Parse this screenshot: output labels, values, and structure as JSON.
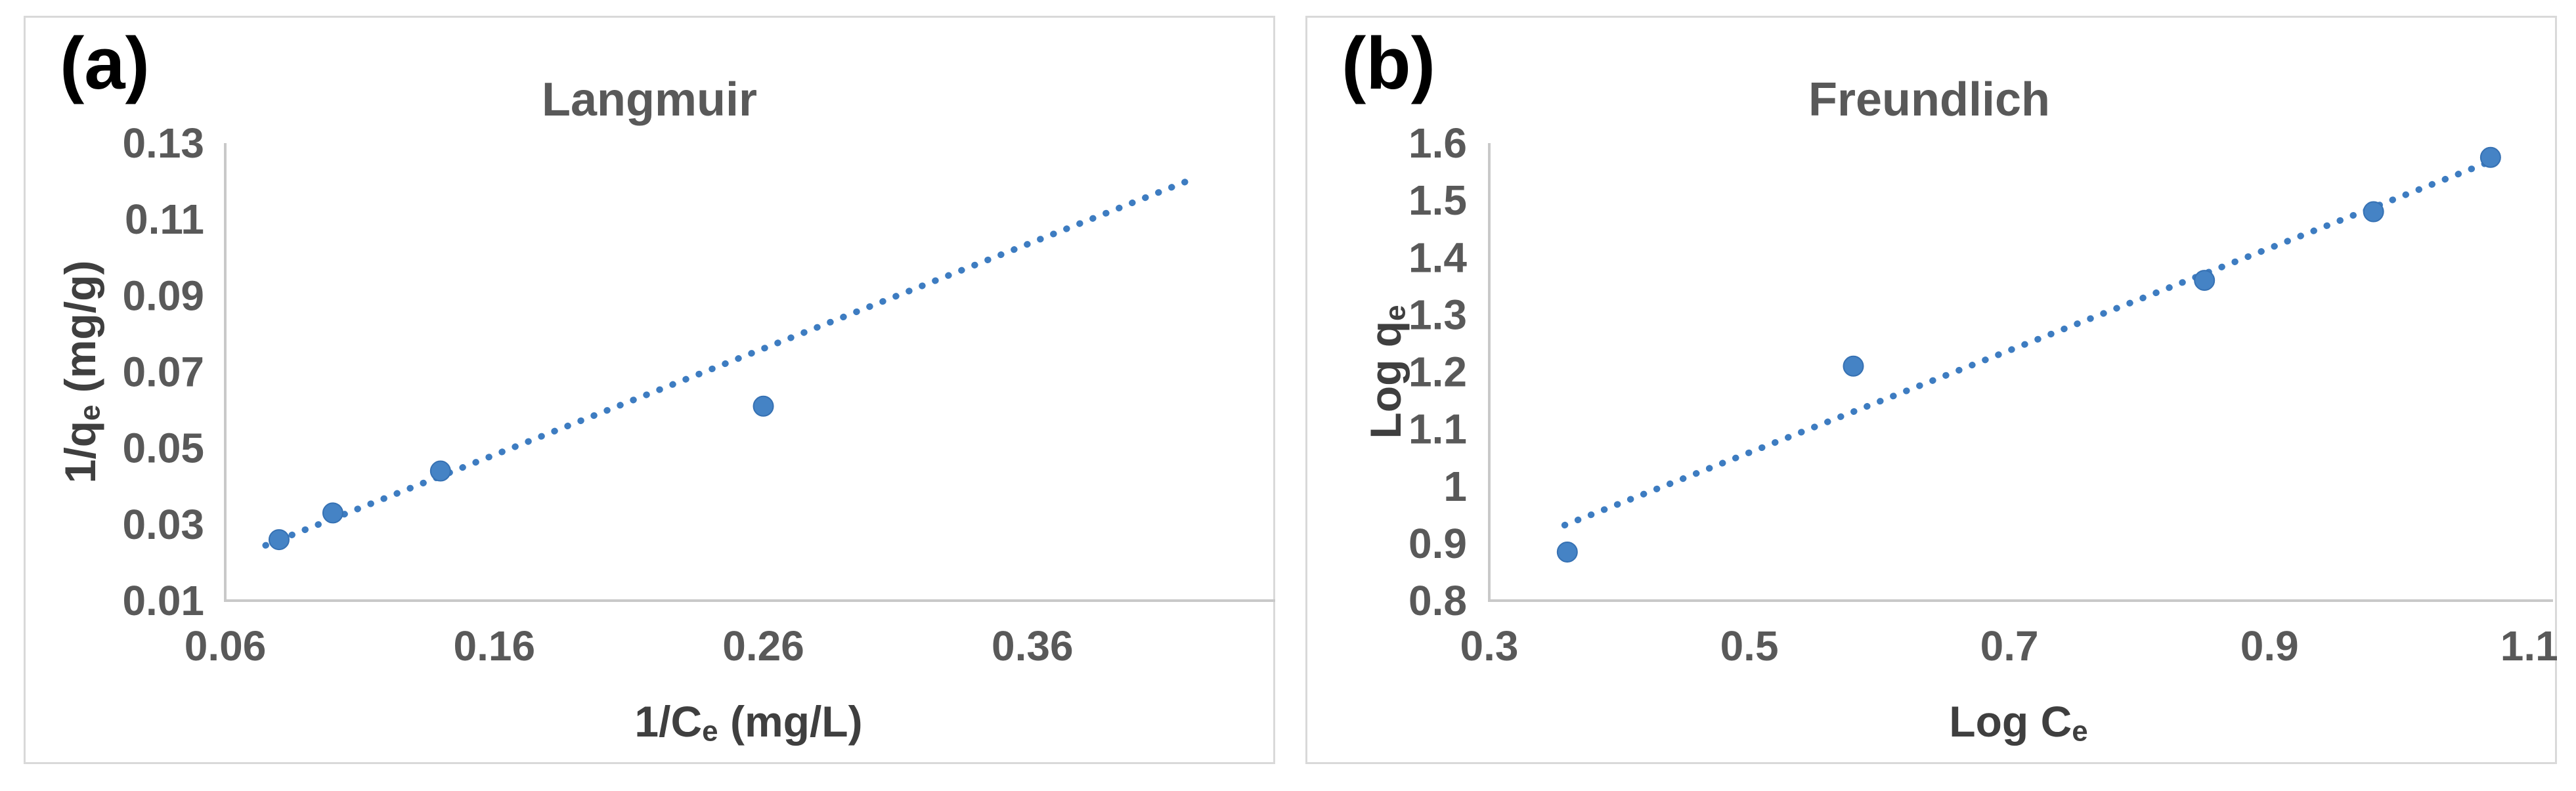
{
  "chart_data": [
    {
      "panel_label": "(a)",
      "type": "scatter",
      "title": "Langmuir",
      "xlabel": {
        "pre": "1/C",
        "sub": "e",
        "post": " (mg/L)"
      },
      "ylabel": {
        "pre": "1/q",
        "sub": "e",
        "post": " (mg/g)"
      },
      "x_tick_labels": [
        "0.06",
        "0.16",
        "0.26",
        "0.36"
      ],
      "y_tick_labels": [
        "0.01",
        "0.03",
        "0.05",
        "0.07",
        "0.09",
        "0.11",
        "0.13"
      ],
      "xlim": [
        0.06,
        0.449
      ],
      "ylim": [
        0.01,
        0.13
      ],
      "grid": false,
      "legend": null,
      "points": [
        {
          "x": 0.08,
          "y": 0.026
        },
        {
          "x": 0.1,
          "y": 0.033
        },
        {
          "x": 0.14,
          "y": 0.044
        },
        {
          "x": 0.26,
          "y": 0.061
        }
      ],
      "trendline": {
        "style": "dotted",
        "x1": 0.075,
        "y1": 0.0245,
        "x2": 0.421,
        "y2": 0.121
      }
    },
    {
      "panel_label": "(b)",
      "type": "scatter",
      "title": "Freundlich",
      "xlabel": {
        "pre": "Log C",
        "sub": "e",
        "post": ""
      },
      "ylabel": {
        "pre": "Log q",
        "sub": "e",
        "post": ""
      },
      "x_tick_labels": [
        "0.3",
        "0.5",
        "0.7",
        "0.9",
        "1.1"
      ],
      "y_tick_labels": [
        "0.8",
        "0.9",
        "1",
        "1.1",
        "1.2",
        "1.3",
        "1.4",
        "1.5",
        "1.6"
      ],
      "xlim": [
        0.3,
        1.114
      ],
      "ylim": [
        0.8,
        1.6
      ],
      "grid": false,
      "legend": null,
      "points": [
        {
          "x": 0.36,
          "y": 0.885
        },
        {
          "x": 0.58,
          "y": 1.21
        },
        {
          "x": 0.85,
          "y": 1.36
        },
        {
          "x": 0.98,
          "y": 1.48
        },
        {
          "x": 1.07,
          "y": 1.575
        }
      ],
      "trendline": {
        "style": "dotted",
        "x1": 0.358,
        "y1": 0.932,
        "x2": 1.07,
        "y2": 1.568
      }
    }
  ],
  "style": {
    "marker_fill": "#4583c5",
    "marker_edge": "#3671b3",
    "trendline_color": "#3d7cc1",
    "axis_line_color": "#c9c9c9",
    "tick_label_color": "#595959",
    "title_color": "#595959",
    "axis_title_color": "#3f3f3f",
    "panel_border_color": "#d9d9d9",
    "panel_label_color": "#000000",
    "background": "#ffffff"
  }
}
